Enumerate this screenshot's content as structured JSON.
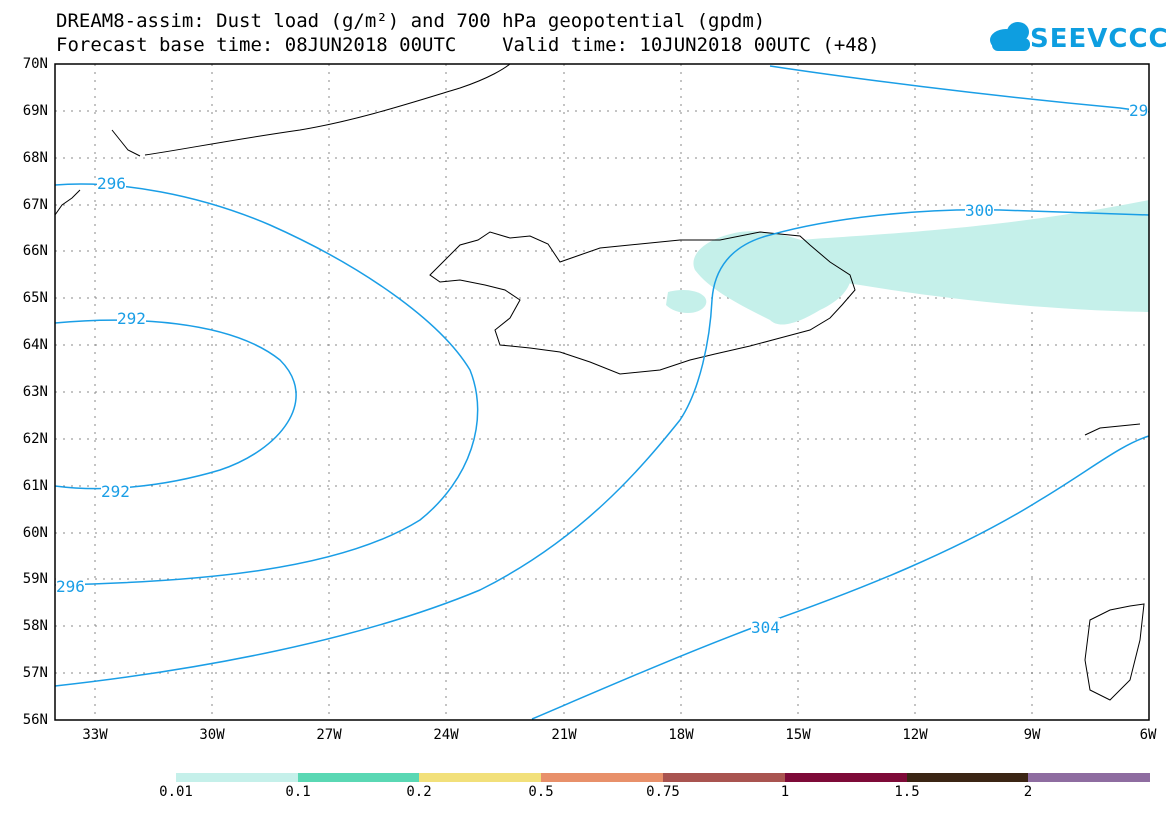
{
  "header": {
    "title_line1": "DREAM8-assim: Dust load (g/m²) and 700 hPa geopotential (gpdm)",
    "title_line2": "Forecast base time: 08JUN2018 00UTC    Valid time: 10JUN2018 00UTC (+48)",
    "logo_text": "SEEVCCC"
  },
  "map": {
    "lat_labels": [
      "70N",
      "69N",
      "68N",
      "67N",
      "66N",
      "65N",
      "64N",
      "63N",
      "62N",
      "61N",
      "60N",
      "59N",
      "58N",
      "57N",
      "56N"
    ],
    "lon_labels": [
      "33W",
      "30W",
      "27W",
      "24W",
      "21W",
      "18W",
      "15W",
      "12W",
      "9W",
      "6W"
    ],
    "contour_labels": [
      "296",
      "292",
      "292",
      "296",
      "300",
      "304",
      "29"
    ]
  },
  "colorbar": {
    "labels": [
      "0.01",
      "0.1",
      "0.2",
      "0.5",
      "0.75",
      "1",
      "1.5",
      "2"
    ],
    "colors": [
      "#c5f0ea",
      "#5ad8b4",
      "#f2e07a",
      "#e8906a",
      "#a95450",
      "#7e0a38",
      "#3b2514",
      "#8e6ca0"
    ]
  },
  "colors": {
    "contour": "#1a9ee6",
    "dust": "#c5f0ea"
  }
}
